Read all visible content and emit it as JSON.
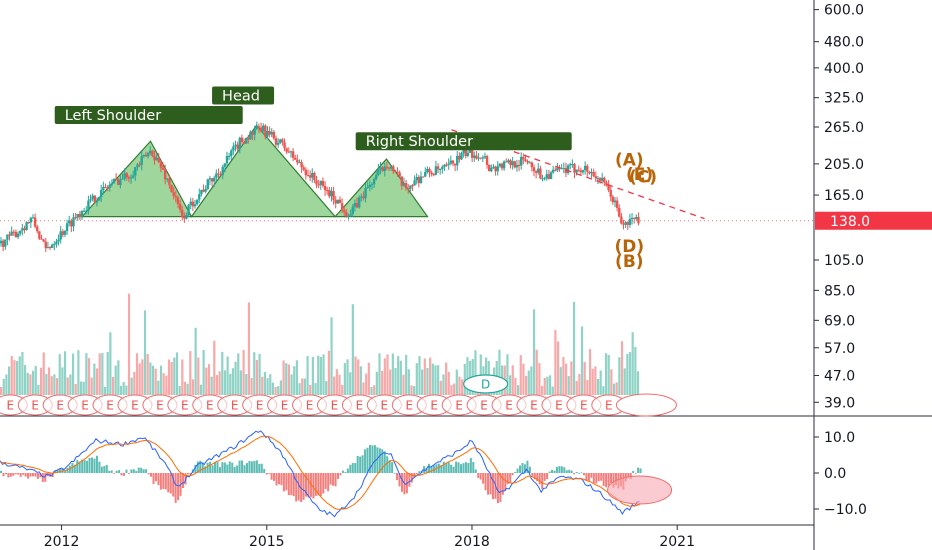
{
  "chart_data": [
    {
      "type": "candlestick",
      "scale": "log",
      "ylim": [
        35,
        650
      ],
      "price_ticks": [
        "600.0",
        "480.0",
        "400.0",
        "325.0",
        "265.0",
        "205.0",
        "165.0",
        "138.0",
        "105.0",
        "85.0",
        "69.0",
        "57.0",
        "47.0",
        "39.0"
      ],
      "price_tick_values": [
        600,
        480,
        400,
        325,
        265,
        205,
        165,
        138,
        105,
        85,
        69,
        57,
        47,
        39
      ],
      "last_price_label": "138.0",
      "last_price": 138,
      "x_ticks": [
        "2012",
        "2015",
        "2018",
        "2021"
      ],
      "x_tick_values": [
        2012,
        2015,
        2018,
        2021
      ],
      "xlim": [
        2011.1,
        2023.0
      ],
      "price_path": [
        [
          2011.1,
          118
        ],
        [
          2011.35,
          128
        ],
        [
          2011.55,
          140
        ],
        [
          2011.75,
          112
        ],
        [
          2012.0,
          128
        ],
        [
          2012.3,
          150
        ],
        [
          2012.7,
          178
        ],
        [
          2013.0,
          192
        ],
        [
          2013.3,
          225
        ],
        [
          2013.55,
          180
        ],
        [
          2013.75,
          140
        ],
        [
          2013.95,
          162
        ],
        [
          2014.3,
          195
        ],
        [
          2014.6,
          240
        ],
        [
          2014.9,
          262
        ],
        [
          2015.2,
          235
        ],
        [
          2015.5,
          200
        ],
        [
          2015.75,
          178
        ],
        [
          2016.0,
          160
        ],
        [
          2016.2,
          143
        ],
        [
          2016.5,
          178
        ],
        [
          2016.75,
          208
        ],
        [
          2017.0,
          172
        ],
        [
          2017.3,
          192
        ],
        [
          2017.6,
          198
        ],
        [
          2017.9,
          222
        ],
        [
          2018.15,
          218
        ],
        [
          2018.25,
          198
        ],
        [
          2018.5,
          205
        ],
        [
          2018.8,
          210
        ],
        [
          2019.0,
          188
        ],
        [
          2019.3,
          196
        ],
        [
          2019.6,
          200
        ],
        [
          2019.85,
          185
        ],
        [
          2020.05,
          160
        ],
        [
          2020.2,
          132
        ],
        [
          2020.35,
          141
        ],
        [
          2020.45,
          138
        ]
      ],
      "patterns": [
        {
          "label": "Left Shoulder",
          "points": [
            [
              2012.3,
              142
            ],
            [
              2013.3,
              240
            ],
            [
              2013.9,
              142
            ]
          ]
        },
        {
          "label": "Head",
          "points": [
            [
              2013.9,
              142
            ],
            [
              2014.85,
              268
            ],
            [
              2016.0,
              142
            ]
          ]
        },
        {
          "label": "Right Shoulder",
          "points": [
            [
              2016.0,
              142
            ],
            [
              2016.75,
              212
            ],
            [
              2017.35,
              142
            ]
          ]
        }
      ],
      "trendline": [
        [
          2017.7,
          260
        ],
        [
          2021.4,
          140
        ]
      ],
      "wave_labels": [
        "(A)",
        "(B)",
        "(C)",
        "(D)",
        "(E)"
      ],
      "volume_badge": "D",
      "event_labels": [
        "E",
        "E",
        "E",
        "E",
        "E",
        "E",
        "E",
        "E",
        "E",
        "E",
        "E",
        "E",
        "E",
        "E",
        "E",
        "E",
        "E",
        "E",
        "E",
        "E",
        "E",
        "E",
        "E",
        "E",
        "E"
      ]
    },
    {
      "type": "macd",
      "ylim": [
        -15,
        15
      ],
      "y_ticks": [
        "10.0",
        "0.0",
        "−10.0"
      ],
      "y_tick_values": [
        10,
        0,
        -10
      ],
      "macd_path": [
        [
          2011.1,
          3
        ],
        [
          2011.5,
          1
        ],
        [
          2011.8,
          -1
        ],
        [
          2012.1,
          2
        ],
        [
          2012.5,
          9
        ],
        [
          2012.9,
          8
        ],
        [
          2013.2,
          10
        ],
        [
          2013.5,
          3
        ],
        [
          2013.7,
          -4
        ],
        [
          2014.0,
          2
        ],
        [
          2014.5,
          7
        ],
        [
          2014.9,
          12
        ],
        [
          2015.2,
          6
        ],
        [
          2015.5,
          -4
        ],
        [
          2015.75,
          -10
        ],
        [
          2016.0,
          -12
        ],
        [
          2016.3,
          -6
        ],
        [
          2016.6,
          4
        ],
        [
          2016.8,
          6
        ],
        [
          2017.0,
          -3
        ],
        [
          2017.4,
          2
        ],
        [
          2017.8,
          6
        ],
        [
          2018.0,
          9
        ],
        [
          2018.2,
          2
        ],
        [
          2018.4,
          -6
        ],
        [
          2018.6,
          -3
        ],
        [
          2018.8,
          1
        ],
        [
          2019.0,
          -5
        ],
        [
          2019.3,
          -1
        ],
        [
          2019.6,
          -2
        ],
        [
          2019.9,
          -6
        ],
        [
          2020.2,
          -11
        ],
        [
          2020.45,
          -8
        ]
      ]
    }
  ]
}
